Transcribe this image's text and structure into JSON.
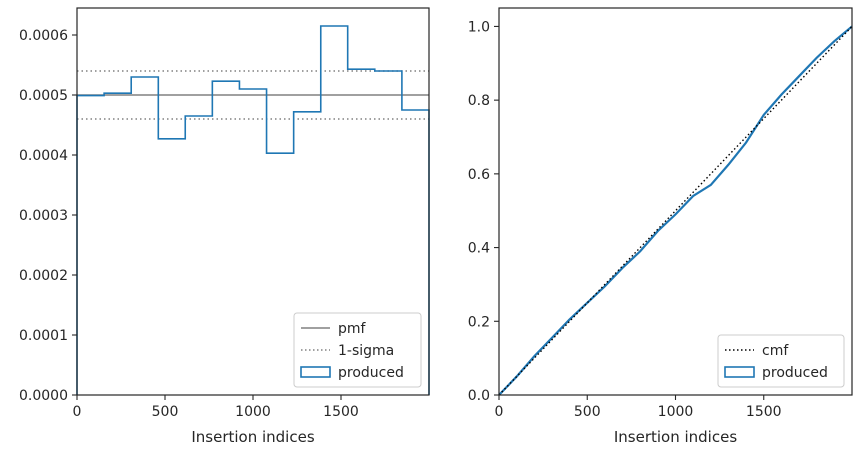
{
  "chart_data": [
    {
      "type": "line",
      "subtype": "histogram-step",
      "title": "",
      "xlabel": "Insertion indices",
      "ylabel": "",
      "xlim": [
        0,
        2000
      ],
      "ylim": [
        0,
        0.000645
      ],
      "xticks": [
        0,
        500,
        1000,
        1500
      ],
      "xtick_labels": [
        "0",
        "500",
        "1000",
        "1500"
      ],
      "yticks": [
        0,
        0.0001,
        0.0002,
        0.0003,
        0.0004,
        0.0005,
        0.0006
      ],
      "ytick_labels": [
        "0.0000",
        "0.0001",
        "0.0002",
        "0.0003",
        "0.0004",
        "0.0005",
        "0.0006"
      ],
      "grid": false,
      "legend_position": "lower-right",
      "legend": [
        {
          "label": "pmf",
          "style": "solid-line",
          "color": "#808080"
        },
        {
          "label": "1-sigma",
          "style": "dotted-line",
          "color": "#808080"
        },
        {
          "label": "produced",
          "style": "step-patch",
          "color": "#1f77b4"
        }
      ],
      "pmf": 0.0005,
      "sigma_band": [
        0.00046,
        0.00054
      ],
      "bin_edges": [
        0,
        154,
        308,
        462,
        615,
        769,
        923,
        1077,
        1231,
        1385,
        1538,
        1692,
        1846,
        2000
      ],
      "values": [
        0.000499,
        0.000503,
        0.00053,
        0.000427,
        0.000465,
        0.000523,
        0.00051,
        0.000403,
        0.000472,
        0.000615,
        0.000543,
        0.00054,
        0.000475
      ]
    },
    {
      "type": "line",
      "title": "",
      "xlabel": "Insertion indices",
      "ylabel": "",
      "xlim": [
        0,
        2000
      ],
      "ylim": [
        0,
        1.05
      ],
      "xticks": [
        0,
        500,
        1000,
        1500
      ],
      "xtick_labels": [
        "0",
        "500",
        "1000",
        "1500"
      ],
      "yticks": [
        0,
        0.2,
        0.4,
        0.6,
        0.8,
        1.0
      ],
      "ytick_labels": [
        "0.0",
        "0.2",
        "0.4",
        "0.6",
        "0.8",
        "1.0"
      ],
      "grid": false,
      "legend_position": "lower-right",
      "legend": [
        {
          "label": "cmf",
          "style": "dotted-line",
          "color": "#000000"
        },
        {
          "label": "produced",
          "style": "step-patch",
          "color": "#1f77b4"
        }
      ],
      "series": [
        {
          "name": "cmf",
          "x": [
            0,
            2000
          ],
          "y": [
            0,
            1.0
          ]
        },
        {
          "name": "produced",
          "x": [
            0,
            100,
            200,
            300,
            400,
            500,
            600,
            700,
            800,
            900,
            1000,
            1100,
            1200,
            1300,
            1400,
            1500,
            1600,
            1700,
            1800,
            1900,
            2000
          ],
          "y": [
            0,
            0.05,
            0.105,
            0.155,
            0.205,
            0.25,
            0.295,
            0.345,
            0.39,
            0.445,
            0.49,
            0.54,
            0.57,
            0.625,
            0.685,
            0.76,
            0.815,
            0.865,
            0.915,
            0.96,
            1.0
          ]
        }
      ]
    }
  ]
}
